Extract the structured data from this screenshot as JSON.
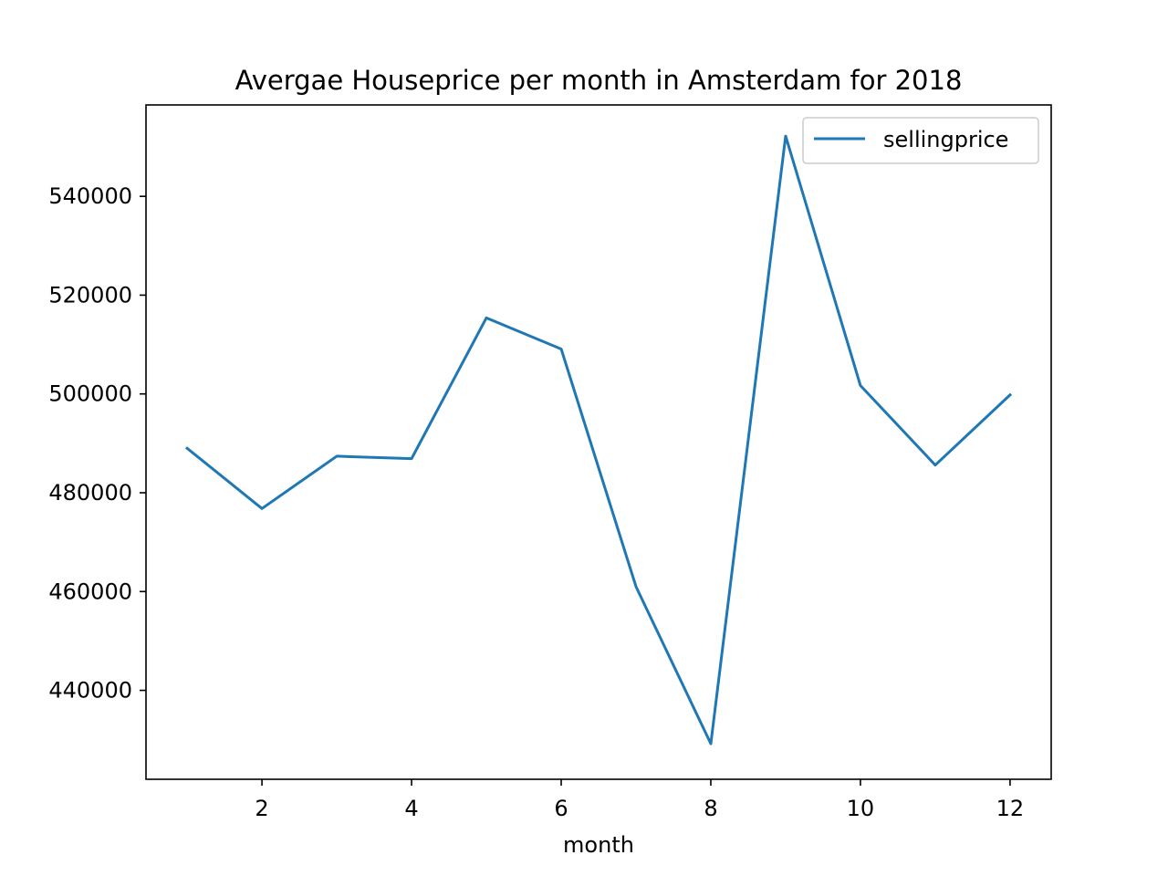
{
  "chart_data": {
    "type": "line",
    "title": "Avergae Houseprice per month in Amsterdam for 2018",
    "xlabel": "month",
    "ylabel": "",
    "x": [
      1,
      2,
      3,
      4,
      5,
      6,
      7,
      8,
      9,
      10,
      11,
      12
    ],
    "series": [
      {
        "name": "sellingprice",
        "color": "#1f77b4",
        "values": [
          489000,
          476800,
          487400,
          486900,
          515400,
          509100,
          461000,
          429200,
          552200,
          501700,
          485600,
          499800
        ]
      }
    ],
    "xlim": [
      0.45,
      12.55
    ],
    "ylim": [
      422000,
      558500
    ],
    "xticks": [
      2,
      4,
      6,
      8,
      10,
      12
    ],
    "xtick_labels": [
      "2",
      "4",
      "6",
      "8",
      "10",
      "12"
    ],
    "yticks": [
      440000,
      460000,
      480000,
      500000,
      520000,
      540000
    ],
    "ytick_labels": [
      "440000",
      "460000",
      "480000",
      "500000",
      "520000",
      "540000"
    ],
    "grid": false,
    "legend_position": "top-right"
  }
}
